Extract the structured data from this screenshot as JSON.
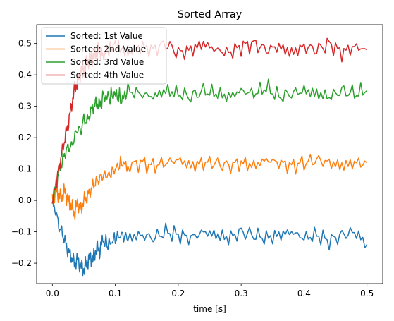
{
  "chart_data": {
    "type": "line",
    "title": "Sorted Array",
    "xlabel": "time [s]",
    "ylabel": "",
    "xlim": [
      -0.025,
      0.525
    ],
    "ylim": [
      -0.265,
      0.56
    ],
    "xticks": [
      0.0,
      0.1,
      0.2,
      0.3,
      0.4,
      0.5
    ],
    "xtick_labels": [
      "0.0",
      "0.1",
      "0.2",
      "0.3",
      "0.4",
      "0.5"
    ],
    "yticks": [
      -0.2,
      -0.1,
      0.0,
      0.1,
      0.2,
      0.3,
      0.4,
      0.5
    ],
    "ytick_labels": [
      "−0.2",
      "−0.1",
      "0.0",
      "0.1",
      "0.2",
      "0.3",
      "0.4",
      "0.5"
    ],
    "grid": false,
    "legend_position": "top-left",
    "series": [
      {
        "name": "Sorted: 1st Value",
        "color": "#1f77b4",
        "x": [
          0.0,
          0.005,
          0.01,
          0.015,
          0.02,
          0.025,
          0.03,
          0.035,
          0.04,
          0.045,
          0.05,
          0.055,
          0.06,
          0.065,
          0.07,
          0.075,
          0.08,
          0.09,
          0.1,
          0.11,
          0.12,
          0.14,
          0.16,
          0.18,
          0.2,
          0.22,
          0.24,
          0.26,
          0.28,
          0.3,
          0.32,
          0.34,
          0.36,
          0.38,
          0.4,
          0.42,
          0.44,
          0.46,
          0.48,
          0.5
        ],
        "values": [
          -0.01,
          -0.03,
          -0.08,
          -0.1,
          -0.13,
          -0.16,
          -0.18,
          -0.2,
          -0.19,
          -0.21,
          -0.22,
          -0.2,
          -0.18,
          -0.19,
          -0.15,
          -0.16,
          -0.13,
          -0.14,
          -0.12,
          -0.11,
          -0.12,
          -0.11,
          -0.12,
          -0.1,
          -0.11,
          -0.12,
          -0.1,
          -0.11,
          -0.12,
          -0.1,
          -0.11,
          -0.12,
          -0.11,
          -0.1,
          -0.12,
          -0.11,
          -0.13,
          -0.11,
          -0.1,
          -0.14
        ]
      },
      {
        "name": "Sorted: 2nd Value",
        "color": "#ff7f0e",
        "x": [
          0.0,
          0.005,
          0.01,
          0.015,
          0.02,
          0.025,
          0.03,
          0.035,
          0.04,
          0.045,
          0.05,
          0.055,
          0.06,
          0.065,
          0.07,
          0.075,
          0.08,
          0.09,
          0.1,
          0.11,
          0.12,
          0.14,
          0.16,
          0.18,
          0.2,
          0.22,
          0.24,
          0.26,
          0.28,
          0.3,
          0.32,
          0.34,
          0.36,
          0.38,
          0.4,
          0.42,
          0.44,
          0.46,
          0.48,
          0.5
        ],
        "values": [
          0.0,
          0.03,
          0.02,
          0.01,
          0.03,
          0.0,
          -0.02,
          -0.04,
          -0.01,
          -0.03,
          0.0,
          0.01,
          0.03,
          0.05,
          0.06,
          0.07,
          0.08,
          0.08,
          0.1,
          0.12,
          0.11,
          0.12,
          0.11,
          0.12,
          0.13,
          0.11,
          0.12,
          0.12,
          0.11,
          0.12,
          0.11,
          0.13,
          0.12,
          0.11,
          0.12,
          0.13,
          0.12,
          0.11,
          0.12,
          0.12
        ]
      },
      {
        "name": "Sorted: 3rd Value",
        "color": "#2ca02c",
        "x": [
          0.0,
          0.005,
          0.01,
          0.015,
          0.02,
          0.025,
          0.03,
          0.035,
          0.04,
          0.045,
          0.05,
          0.055,
          0.06,
          0.065,
          0.07,
          0.075,
          0.08,
          0.09,
          0.1,
          0.11,
          0.12,
          0.14,
          0.16,
          0.18,
          0.2,
          0.22,
          0.24,
          0.26,
          0.28,
          0.3,
          0.32,
          0.34,
          0.36,
          0.38,
          0.4,
          0.42,
          0.44,
          0.46,
          0.48,
          0.5
        ],
        "values": [
          -0.01,
          0.04,
          0.09,
          0.12,
          0.15,
          0.17,
          0.17,
          0.2,
          0.23,
          0.22,
          0.26,
          0.25,
          0.28,
          0.3,
          0.31,
          0.3,
          0.33,
          0.33,
          0.34,
          0.32,
          0.35,
          0.34,
          0.33,
          0.35,
          0.34,
          0.33,
          0.35,
          0.34,
          0.33,
          0.35,
          0.34,
          0.36,
          0.33,
          0.34,
          0.35,
          0.34,
          0.33,
          0.35,
          0.34,
          0.35
        ]
      },
      {
        "name": "Sorted: 4th Value",
        "color": "#d62728",
        "x": [
          0.0,
          0.005,
          0.01,
          0.015,
          0.02,
          0.025,
          0.03,
          0.035,
          0.04,
          0.045,
          0.05,
          0.055,
          0.06,
          0.065,
          0.07,
          0.075,
          0.08,
          0.09,
          0.1,
          0.11,
          0.12,
          0.14,
          0.16,
          0.18,
          0.2,
          0.22,
          0.24,
          0.26,
          0.28,
          0.3,
          0.32,
          0.34,
          0.36,
          0.38,
          0.4,
          0.42,
          0.44,
          0.46,
          0.48,
          0.5
        ],
        "values": [
          0.0,
          0.04,
          0.1,
          0.15,
          0.2,
          0.24,
          0.3,
          0.35,
          0.38,
          0.41,
          0.42,
          0.44,
          0.45,
          0.46,
          0.47,
          0.48,
          0.46,
          0.48,
          0.5,
          0.48,
          0.47,
          0.49,
          0.48,
          0.5,
          0.47,
          0.48,
          0.5,
          0.48,
          0.47,
          0.49,
          0.5,
          0.48,
          0.49,
          0.47,
          0.49,
          0.48,
          0.5,
          0.47,
          0.49,
          0.48
        ]
      }
    ]
  }
}
